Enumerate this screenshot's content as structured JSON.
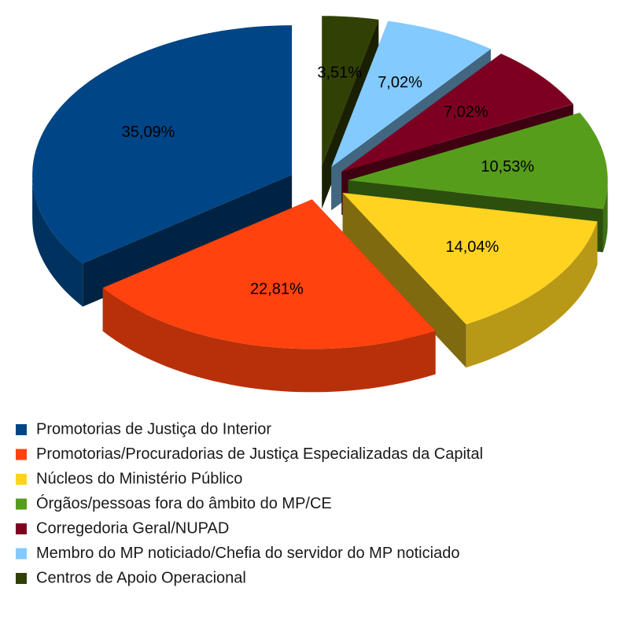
{
  "chart_data": {
    "type": "pie",
    "categories": [
      "Promotorias de Justiça do Interior",
      "Promotorias/Procuradorias de Justiça Especializadas da Capital",
      "Núcleos do Ministério Público",
      "Órgãos/pessoas fora do âmbito do MP/CE",
      "Corregedoria Geral/NUPAD",
      "Membro do MP noticiado/Chefia do servidor do MP noticiado",
      "Centros de Apoio Operacional"
    ],
    "values": [
      35.09,
      22.81,
      14.04,
      10.53,
      7.02,
      7.02,
      3.51
    ],
    "value_labels": [
      "35,09%",
      "22,81%",
      "14,04%",
      "10,53%",
      "7,02%",
      "7,02%",
      "3,51%"
    ],
    "colors": [
      "#004586",
      "#ff420e",
      "#ffd320",
      "#579d1c",
      "#7e0021",
      "#83caff",
      "#314004"
    ],
    "legend": "bottom"
  }
}
